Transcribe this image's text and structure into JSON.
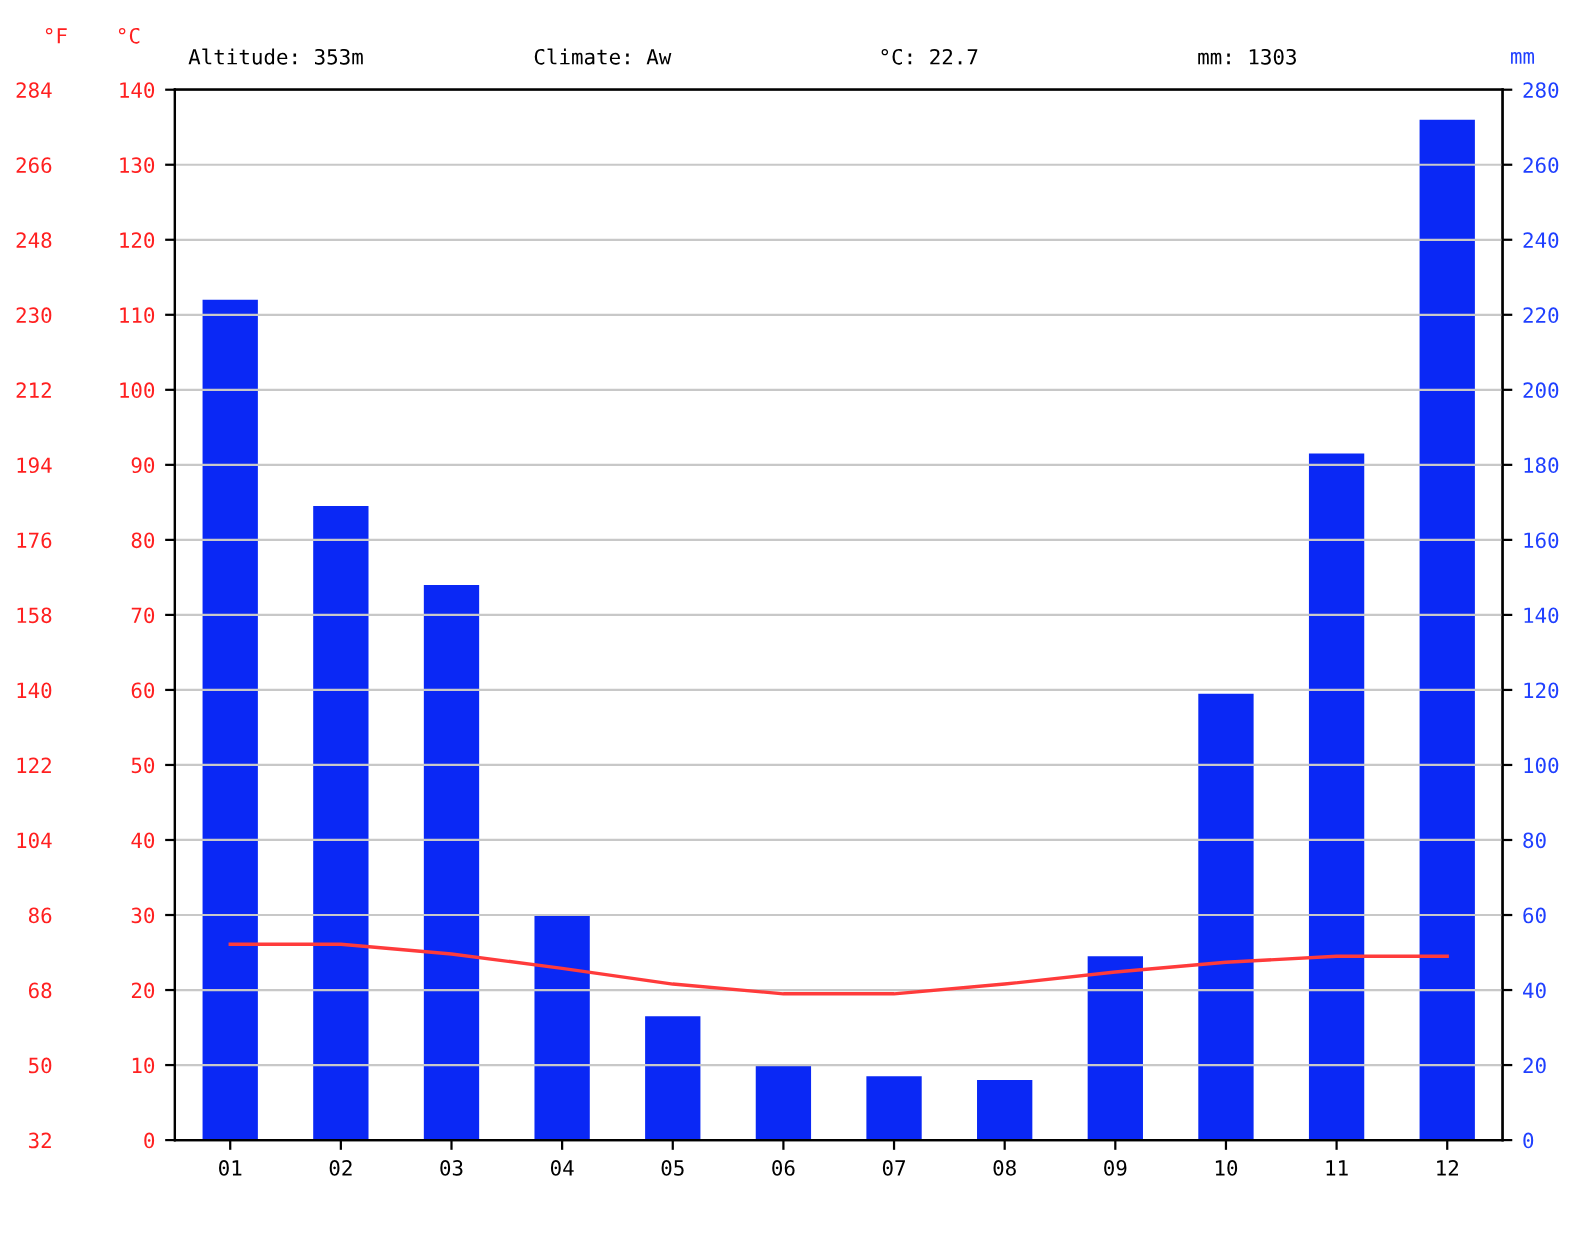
{
  "chart_data": {
    "type": "bar",
    "categories": [
      "01",
      "02",
      "03",
      "04",
      "05",
      "06",
      "07",
      "08",
      "09",
      "10",
      "11",
      "12"
    ],
    "ylabel": "°C",
    "y2label": "mm",
    "y3label": "°F",
    "ylim": [
      0,
      140
    ],
    "yticks": [
      0,
      10,
      20,
      30,
      40,
      50,
      60,
      70,
      80,
      90,
      100,
      110,
      120,
      130,
      140
    ],
    "y2lim": [
      0,
      280
    ],
    "y2ticks": [
      0,
      20,
      40,
      60,
      80,
      100,
      120,
      140,
      160,
      180,
      200,
      220,
      240,
      260,
      280
    ],
    "y3lim": [
      32,
      284
    ],
    "y3ticks": [
      32,
      50,
      68,
      86,
      104,
      122,
      140,
      158,
      176,
      194,
      212,
      230,
      248,
      266,
      284
    ],
    "series": [
      {
        "axis": "y2",
        "color": "#0a28f5",
        "values": [
          224,
          169,
          148,
          60,
          33,
          20,
          17,
          16,
          49,
          119,
          183,
          272
        ]
      },
      {
        "type": "line",
        "axis": "y",
        "color": "#ff3b3b",
        "values": [
          26.1,
          26.1,
          24.8,
          22.9,
          20.8,
          19.5,
          19.5,
          20.8,
          22.4,
          23.7,
          24.5,
          24.5
        ]
      }
    ],
    "grid": "y",
    "annotations": [
      "Altitude: 353m",
      "Climate: Aw",
      "°C: 22.7",
      "mm: 1303"
    ]
  }
}
